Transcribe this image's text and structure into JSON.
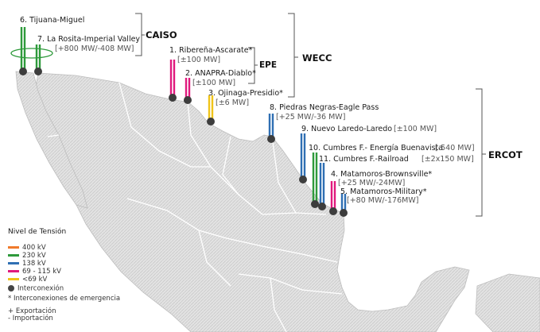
{
  "colors": {
    "400kv": "#f07a2c",
    "230kv": "#2e9a3b",
    "138kv": "#2f6fb3",
    "69_115kv": "#e0197d",
    "lt69kv": "#f0c419",
    "node": "#3d3d3d",
    "land": "#dcdcdc",
    "land_edge": "#c4c4c4",
    "bracket": "#555555"
  },
  "regions": {
    "caiso": "CAISO",
    "epe": "EPE",
    "wecc": "WECC",
    "ercot": "ERCOT"
  },
  "interconnections": [
    {
      "id": "6",
      "name": "6. Tijuana-Miguel",
      "capacity": ""
    },
    {
      "id": "7",
      "name": "7. La Rosita-Imperial Valley",
      "capacity": "[+800 MW/-408 MW]"
    },
    {
      "id": "1",
      "name": "1. Ribereña-Ascarate*",
      "capacity": "[±100 MW]"
    },
    {
      "id": "2",
      "name": "2. ANAPRA-Diablo*",
      "capacity": "[±100 MW]"
    },
    {
      "id": "3",
      "name": "3. Ojinaga-Presidio*",
      "capacity": "[±6 MW]"
    },
    {
      "id": "8",
      "name": "8. Piedras Negras-Eagle Pass",
      "capacity": "[+25 MW/-36 MW]"
    },
    {
      "id": "9",
      "name": "9. Nuevo  Laredo-Laredo",
      "capacity": "[±100  MW]"
    },
    {
      "id": "10",
      "name": "10. Cumbres F.- Energía Buenavista",
      "capacity": "[-540 MW]"
    },
    {
      "id": "11",
      "name": "11. Cumbres F.-Railroad",
      "capacity": "[±2x150 MW]"
    },
    {
      "id": "4",
      "name": "4. Matamoros-Brownsville*",
      "capacity": "[+25 MW/-24MW]"
    },
    {
      "id": "5",
      "name": "5. Matamoros-Military*",
      "capacity": "[+80 MW/-176MW]"
    }
  ],
  "legend": {
    "title": "Nivel de Tensión",
    "items": [
      {
        "label": "400 kV",
        "color": "#f07a2c"
      },
      {
        "label": "230 kV",
        "color": "#2e9a3b"
      },
      {
        "label": "138 kV",
        "color": "#2f6fb3"
      },
      {
        "label": "69 - 115 kV",
        "color": "#e0197d"
      },
      {
        "label": "<69 kV",
        "color": "#f0c419"
      }
    ],
    "node_label": "Interconexión",
    "emergency": "* Interconexiones de emergencia",
    "export": "+ Exportación",
    "import": "- Importación"
  }
}
